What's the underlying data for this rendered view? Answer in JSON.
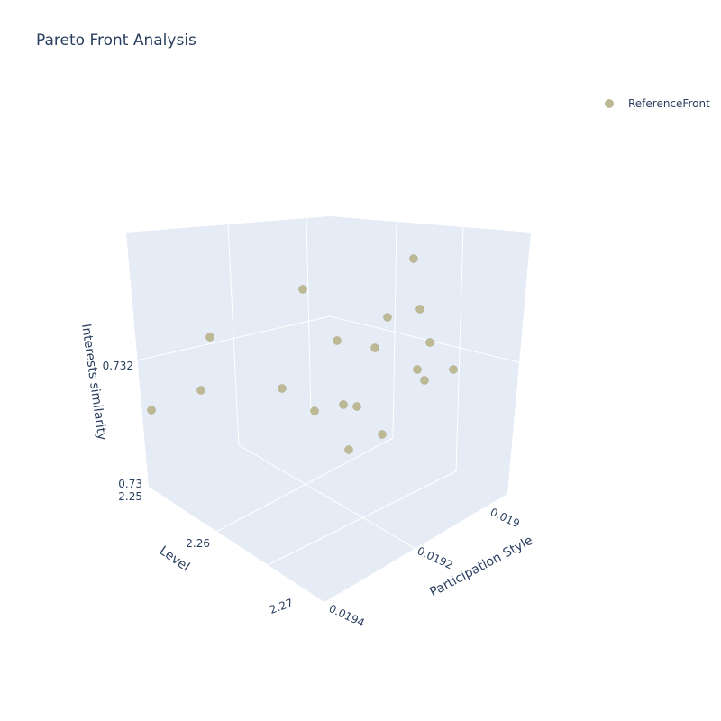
{
  "chart_data": {
    "type": "scatter3d",
    "title": "Pareto Front Analysis",
    "axes": {
      "x": {
        "label": "Level",
        "ticks": [
          "2.25",
          "2.26",
          "2.27"
        ]
      },
      "y": {
        "label": "Participation Style",
        "ticks": [
          "0.019",
          "0.0192",
          "0.0194"
        ]
      },
      "z": {
        "label": "Interests similarity",
        "ticks": [
          "0.73",
          "0.732"
        ]
      }
    },
    "legend": {
      "position": "top-right",
      "entries": [
        "ReferenceFront"
      ]
    },
    "series": [
      {
        "name": "ReferenceFront",
        "color": "#bcb994",
        "points_count": 19
      }
    ],
    "colors": {
      "scene_background": "#e5ecf6",
      "grid": "#ffffff",
      "text": "#2a3f5f"
    }
  }
}
